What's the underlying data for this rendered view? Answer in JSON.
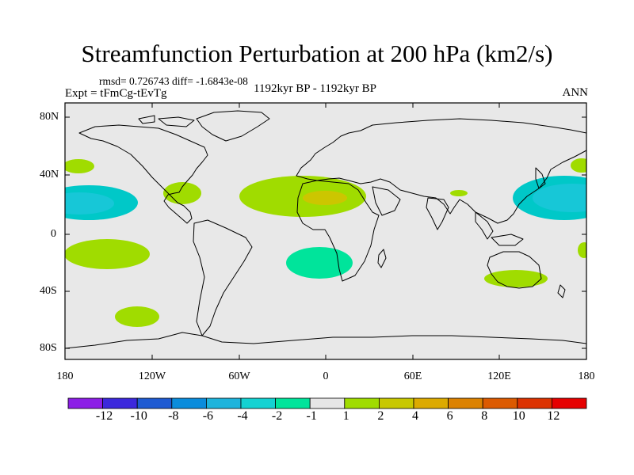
{
  "title": "Streamfunction Perturbation at 200 hPa (km2/s)",
  "stats": "rmsd= 0.726743 diff= -1.6843e-08",
  "experiment": "Expt = tFmCg-tEvTg",
  "period": "1192kyr BP - 1192kyr BP",
  "season": "ANN",
  "map": {
    "lat_ticks": [
      "80N",
      "40N",
      "0",
      "40S",
      "80S"
    ],
    "lon_ticks": [
      "180",
      "120W",
      "60W",
      "0",
      "60E",
      "120E",
      "180"
    ],
    "background_color": "#e8e8e8",
    "regions": [
      {
        "name": "north-pacific-west-anomaly",
        "level": -2,
        "color": "#00c8c8",
        "core_level": -4,
        "core_color": "#17c7d7"
      },
      {
        "name": "north-pacific-east-anomaly",
        "level": -2,
        "color": "#00c8c8",
        "core_level": -4,
        "core_color": "#17c7d7"
      },
      {
        "name": "north-atlantic-africa-anomaly",
        "level": 2,
        "color": "#a0dc00",
        "core_level": 4,
        "core_color": "#ccc600"
      },
      {
        "name": "south-atlantic-anomaly",
        "level": -1,
        "color": "#00e49b"
      },
      {
        "name": "south-pacific-anomaly",
        "level": 2,
        "color": "#a0dc00"
      },
      {
        "name": "australia-anomaly",
        "level": 2,
        "color": "#a0dc00"
      }
    ]
  },
  "colorbar": {
    "colors": [
      "#8c1ee6",
      "#3c28dc",
      "#1e5ad2",
      "#0a8cdc",
      "#1eb4dc",
      "#14d2d2",
      "#00e49b",
      "#e6e6e6",
      "#a0dc00",
      "#c8c800",
      "#dcaa00",
      "#dc8200",
      "#dc5a00",
      "#dc3200",
      "#e60000"
    ],
    "labels": [
      "-12",
      "-10",
      "-8",
      "-6",
      "-4",
      "-2",
      "-1",
      "1",
      "2",
      "4",
      "6",
      "8",
      "10",
      "12"
    ]
  }
}
